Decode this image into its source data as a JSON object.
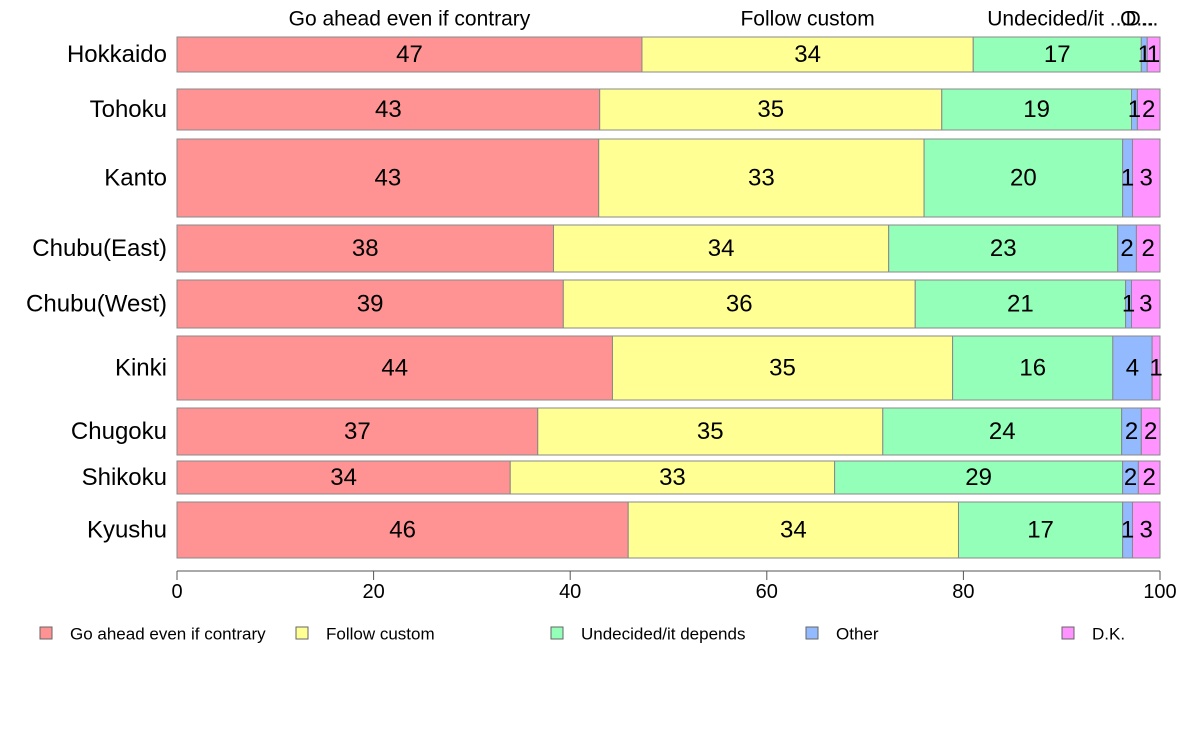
{
  "chart_data": {
    "type": "bar",
    "orientation": "horizontal",
    "stacked": true,
    "categories": [
      "Hokkaido",
      "Tohoku",
      "Kanto",
      "Chubu(East)",
      "Chubu(West)",
      "Kinki",
      "Chugoku",
      "Shikoku",
      "Kyushu"
    ],
    "series": [
      {
        "name": "Go ahead even if contrary",
        "color": "#ff9393",
        "values": [
          47.3,
          43.0,
          42.9,
          38.3,
          39.3,
          44.3,
          36.7,
          33.9,
          45.9
        ]
      },
      {
        "name": "Follow custom",
        "color": "#ffff93",
        "values": [
          33.7,
          34.8,
          33.1,
          34.1,
          35.8,
          34.6,
          35.1,
          33.0,
          33.6
        ]
      },
      {
        "name": "Undecided/it depends",
        "color": "#93ffb9",
        "values": [
          17.1,
          19.3,
          20.2,
          23.3,
          21.4,
          16.3,
          24.3,
          29.3,
          16.7
        ]
      },
      {
        "name": "Other",
        "color": "#93b9ff",
        "values": [
          0.6,
          0.6,
          1.0,
          1.9,
          0.6,
          4.0,
          2.0,
          1.6,
          1.0
        ]
      },
      {
        "name": "D.K.",
        "color": "#ff93ff",
        "values": [
          1.3,
          2.3,
          2.8,
          2.4,
          2.9,
          0.8,
          1.9,
          2.2,
          2.8
        ]
      }
    ],
    "data_labels": [
      [
        "47",
        "34",
        "17",
        "1",
        "1"
      ],
      [
        "43",
        "35",
        "19",
        "1",
        "2"
      ],
      [
        "43",
        "33",
        "20",
        "1",
        "3"
      ],
      [
        "38",
        "34",
        "23",
        "2",
        "2"
      ],
      [
        "39",
        "36",
        "21",
        "1",
        "3"
      ],
      [
        "44",
        "35",
        "16",
        "4",
        "1"
      ],
      [
        "37",
        "35",
        "24",
        "2",
        "2"
      ],
      [
        "34",
        "33",
        "29",
        "2",
        "2"
      ],
      [
        "46",
        "34",
        "17",
        "1",
        "3"
      ]
    ],
    "top_labels": [
      "Go ahead even if contrary",
      "Follow custom",
      "Undecided/it ...",
      "O...",
      "D..."
    ],
    "xlim": [
      0,
      100
    ],
    "xticks": [
      "0",
      "20",
      "40",
      "60",
      "80",
      "100"
    ],
    "legend": {
      "position": "bottom",
      "items": [
        "Go ahead even if contrary",
        "Follow custom",
        "Undecided/it depends",
        "Other",
        "D.K."
      ]
    },
    "grid": false
  }
}
